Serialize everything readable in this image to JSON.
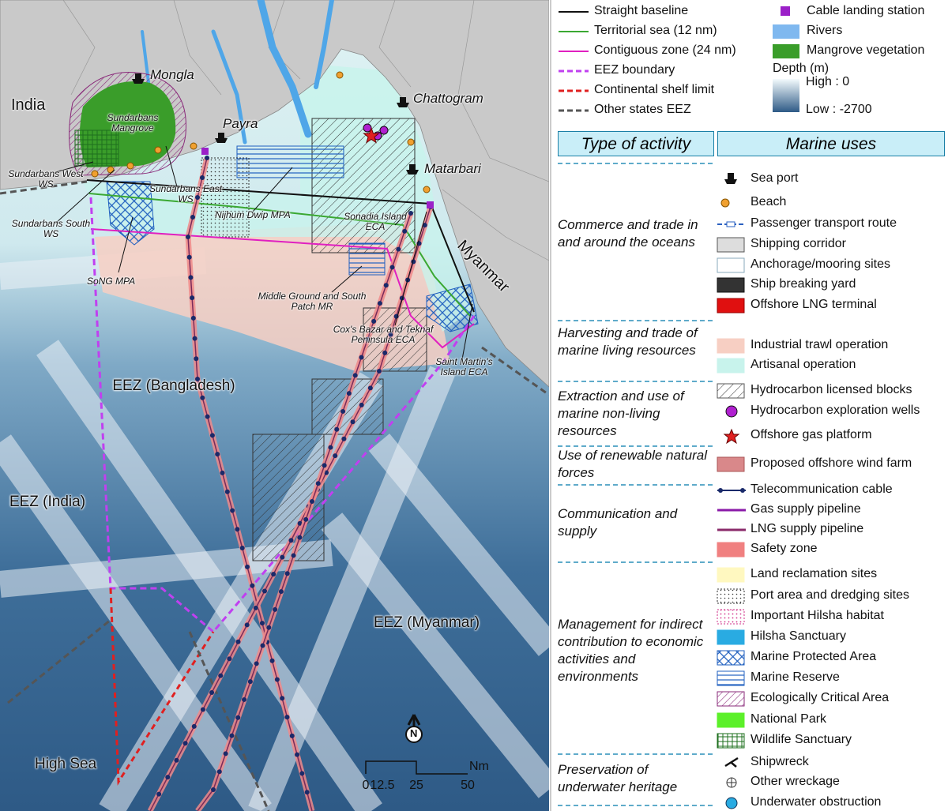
{
  "map": {
    "labels": [
      "India",
      "Mongla",
      "Sundarbans Mangrove",
      "Payra",
      "Chattogram",
      "Matarbari",
      "Sundarbans West WS",
      "Sundarbans East WS",
      "Sundarbans South WS",
      "Nijhum Dwip MPA",
      "Sonadia Island ECA",
      "SoNG MPA",
      "Myanmar",
      "Middle Ground and South Patch MR",
      "Cox's Bazar and Teknaf Peninsula ECA",
      "Saint Martin's Island ECA",
      "EEZ (Bangladesh)",
      "EEZ (India)",
      "EEZ (Myanmar)",
      "High Sea"
    ],
    "north": "N",
    "scale": {
      "unit": "Nm",
      "ticks": [
        0,
        12.5,
        25,
        50
      ]
    }
  },
  "legend": {
    "lines": [
      "Straight baseline",
      "Territorial sea (12 nm)",
      "Contiguous zone (24 nm)",
      "EEZ boundary",
      "Continental shelf limit",
      "Other states EEZ"
    ],
    "features": [
      "Cable landing station",
      "Rivers",
      "Mangrove vegetation"
    ],
    "depth": {
      "title": "Depth (m)",
      "high": "High : 0",
      "low": "Low : -2700"
    }
  },
  "table": {
    "headers": [
      "Type of activity",
      "Marine uses"
    ],
    "groups": [
      {
        "activity": "Commerce and trade in and around the oceans",
        "uses": [
          "Sea port",
          "Beach",
          "Passenger transport route",
          "Shipping corridor",
          "Anchorage/mooring sites",
          "Ship breaking yard",
          "Offshore LNG terminal"
        ]
      },
      {
        "activity": "Harvesting and trade of marine living resources",
        "uses": [
          "Industrial trawl operation",
          "Artisanal operation"
        ]
      },
      {
        "activity": "Extraction and use of marine non-living resources",
        "uses": [
          "Hydrocarbon licensed blocks",
          "Hydrocarbon exploration wells",
          "Offshore gas platform"
        ]
      },
      {
        "activity": "Use of renewable natural forces",
        "uses": [
          "Proposed offshore wind farm"
        ]
      },
      {
        "activity": "Communication and supply",
        "uses": [
          "Telecommunication cable",
          "Gas supply pipeline",
          "LNG supply pipeline",
          "Safety zone"
        ]
      },
      {
        "activity": "Management for indirect contribution to economic activities and environments",
        "uses": [
          "Land reclamation sites",
          "Port area and dredging sites",
          "Important Hilsha habitat",
          "Hilsha Sanctuary",
          "Marine Protected Area",
          "Marine Reserve",
          "Ecologically Critical Area",
          "National Park",
          "Wildlife Sanctuary"
        ]
      },
      {
        "activity": "Preservation of underwater heritage",
        "uses": [
          "Shipwreck",
          "Other wreckage",
          "Underwater obstruction"
        ]
      }
    ]
  }
}
